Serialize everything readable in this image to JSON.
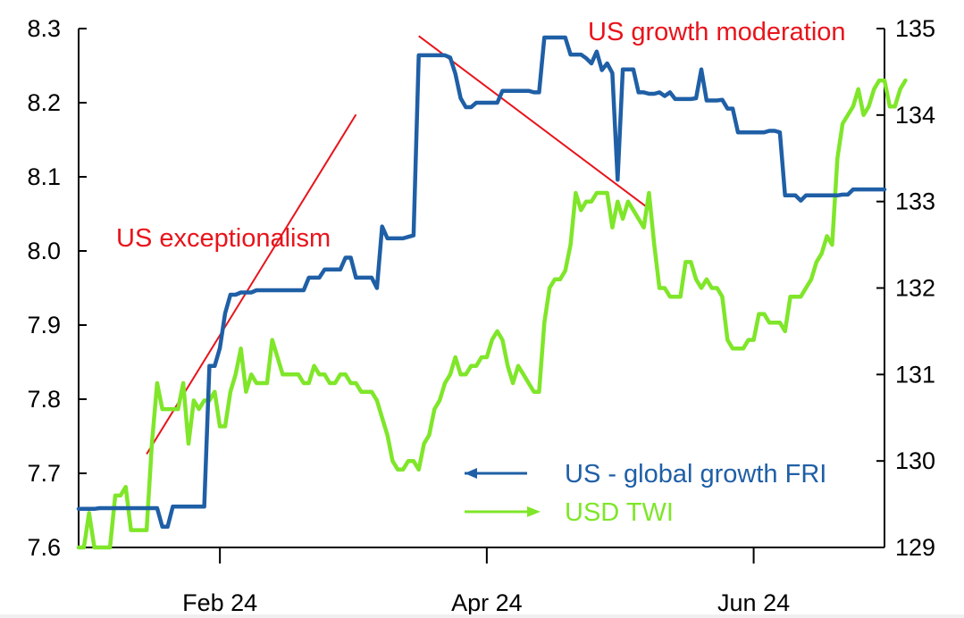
{
  "chart_data": {
    "type": "line",
    "left_axis": {
      "range": [
        7.6,
        8.3
      ],
      "ticks": [
        "7.6",
        "7.7",
        "7.8",
        "7.9",
        "8.0",
        "8.1",
        "8.2",
        "8.3"
      ]
    },
    "right_axis": {
      "range": [
        129,
        135
      ],
      "ticks": [
        "129",
        "130",
        "131",
        "132",
        "133",
        "134",
        "135"
      ]
    },
    "x_ticks": [
      "Feb 24",
      "Apr 24",
      "Jun 24"
    ],
    "grid": false,
    "legend_position": "bottom-right",
    "series": [
      {
        "name": "US - global growth FRI",
        "axis": "left",
        "color": "#1f5fa6",
        "values": [
          7.652,
          7.652,
          7.652,
          7.652,
          7.653,
          7.653,
          7.653,
          7.653,
          7.653,
          7.653,
          7.653,
          7.653,
          7.653,
          7.653,
          7.653,
          7.653,
          7.628,
          7.628,
          7.655,
          7.655,
          7.655,
          7.655,
          7.655,
          7.655,
          7.655,
          7.845,
          7.845,
          7.869,
          7.916,
          7.941,
          7.941,
          7.944,
          7.944,
          7.944,
          7.947,
          7.947,
          7.947,
          7.947,
          7.947,
          7.947,
          7.947,
          7.947,
          7.947,
          7.947,
          7.964,
          7.964,
          7.964,
          7.975,
          7.975,
          7.975,
          7.975,
          7.991,
          7.991,
          7.964,
          7.964,
          7.964,
          7.964,
          7.95,
          8.033,
          8.017,
          8.017,
          8.017,
          8.017,
          8.019,
          8.021,
          8.264,
          8.264,
          8.264,
          8.264,
          8.264,
          8.264,
          8.261,
          8.239,
          8.206,
          8.194,
          8.194,
          8.2,
          8.2,
          8.2,
          8.2,
          8.2,
          8.216,
          8.216,
          8.216,
          8.216,
          8.216,
          8.216,
          8.214,
          8.214,
          8.288,
          8.288,
          8.288,
          8.288,
          8.288,
          8.265,
          8.265,
          8.265,
          8.26,
          8.253,
          8.269,
          8.244,
          8.253,
          8.24,
          8.096,
          8.245,
          8.245,
          8.245,
          8.214,
          8.214,
          8.212,
          8.212,
          8.214,
          8.209,
          8.214,
          8.205,
          8.205,
          8.205,
          8.205,
          8.206,
          8.245,
          8.203,
          8.203,
          8.203,
          8.204,
          8.192,
          8.192,
          8.16,
          8.16,
          8.16,
          8.16,
          8.16,
          8.16,
          8.162,
          8.162,
          8.16,
          8.075,
          8.075,
          8.075,
          8.068,
          8.075,
          8.075,
          8.075,
          8.075,
          8.075,
          8.075,
          8.075,
          8.076,
          8.076,
          8.083,
          8.083,
          8.083,
          8.083,
          8.083,
          8.083,
          8.083
        ]
      },
      {
        "name": "USD TWI",
        "axis": "right",
        "color": "#7fe629",
        "values": [
          129.0,
          129.0,
          129.4,
          129.0,
          129.0,
          129.0,
          129.0,
          129.6,
          129.6,
          129.7,
          129.2,
          129.2,
          129.2,
          129.2,
          130.2,
          130.9,
          130.6,
          130.6,
          130.6,
          130.6,
          130.9,
          130.2,
          130.7,
          130.6,
          130.7,
          130.7,
          130.8,
          130.4,
          130.4,
          130.8,
          131.0,
          131.3,
          130.8,
          131.0,
          130.9,
          130.9,
          130.9,
          131.4,
          131.2,
          131.0,
          131.0,
          131.0,
          131.0,
          130.9,
          130.9,
          131.1,
          131.0,
          131.0,
          130.9,
          130.9,
          131.0,
          131.0,
          130.9,
          130.9,
          130.8,
          130.8,
          130.8,
          130.7,
          130.5,
          130.3,
          130.0,
          129.9,
          129.9,
          130.0,
          130.0,
          129.9,
          130.2,
          130.3,
          130.6,
          130.7,
          130.9,
          131.0,
          131.2,
          131.0,
          131.0,
          131.1,
          131.1,
          131.2,
          131.2,
          131.4,
          131.5,
          131.4,
          131.1,
          130.9,
          131.1,
          131.0,
          130.9,
          130.8,
          130.8,
          131.6,
          132.0,
          132.1,
          132.1,
          132.2,
          132.5,
          133.1,
          132.9,
          133.0,
          133.0,
          133.1,
          133.1,
          133.1,
          132.7,
          133.0,
          132.8,
          133.0,
          132.9,
          132.8,
          132.7,
          133.1,
          132.5,
          132.0,
          132.0,
          131.9,
          131.9,
          131.9,
          132.3,
          132.3,
          132.1,
          132.0,
          132.1,
          132.0,
          132.0,
          131.9,
          131.4,
          131.3,
          131.3,
          131.3,
          131.4,
          131.4,
          131.7,
          131.7,
          131.6,
          131.6,
          131.6,
          131.5,
          131.9,
          131.9,
          131.9,
          132.0,
          132.1,
          132.3,
          132.4,
          132.6,
          132.5,
          133.5,
          133.9,
          134.0,
          134.1,
          134.3,
          134.0,
          134.1,
          134.3,
          134.4,
          134.4,
          134.1,
          134.1,
          134.3,
          134.4
        ]
      }
    ],
    "annotations": [
      {
        "text": "US exceptionalism",
        "line": {
          "from": [
            13,
            7.726
          ],
          "to": [
            53,
            8.184
          ]
        }
      },
      {
        "text": "US growth moderation",
        "line": {
          "from": [
            65,
            8.29
          ],
          "to": [
            109,
            8.057
          ]
        }
      }
    ]
  }
}
